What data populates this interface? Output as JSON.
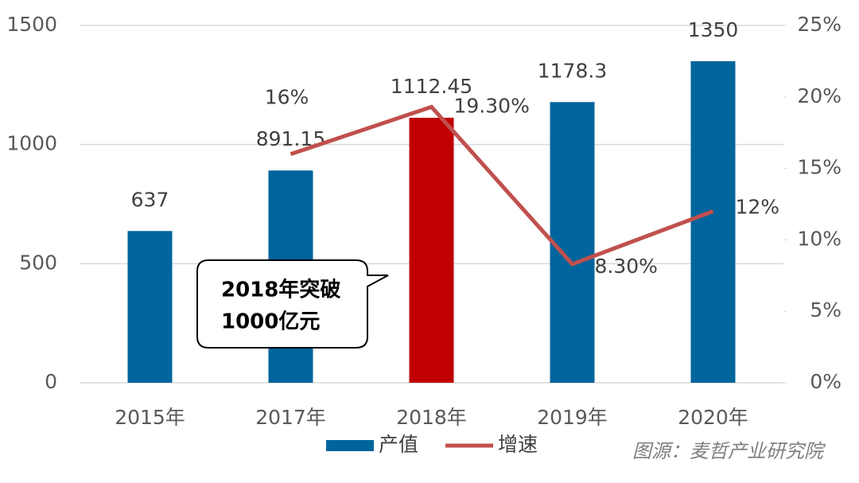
{
  "chart_data": {
    "type": "bar-line",
    "categories": [
      "2015年",
      "2017年",
      "2018年",
      "2019年",
      "2020年"
    ],
    "series": [
      {
        "name": "产值",
        "type": "bar",
        "color": "#00659c",
        "colors": [
          "#00659c",
          "#00659c",
          "#c00000",
          "#00659c",
          "#00659c"
        ],
        "values": [
          637,
          891.15,
          1112.45,
          1178.3,
          1350
        ]
      },
      {
        "name": "增速",
        "type": "line",
        "axis": "y2",
        "color": "#c0504d",
        "values": [
          null,
          16,
          19.3,
          8.3,
          12
        ],
        "value_labels": [
          null,
          "16%",
          "19.30%",
          "8.30%",
          "12%"
        ]
      }
    ],
    "ylim": [
      0,
      1500
    ],
    "yticks": [
      0,
      500,
      1000,
      1500
    ],
    "y2lim": [
      0,
      25
    ],
    "y2ticks": [
      {
        "value": 0,
        "label": "0%"
      },
      {
        "value": 5,
        "label": "5%"
      },
      {
        "value": 10,
        "label": "10%"
      },
      {
        "value": 15,
        "label": "15%"
      },
      {
        "value": 20,
        "label": "20%"
      },
      {
        "value": 25,
        "label": "25%"
      }
    ],
    "grid": true,
    "annotation": [
      "2018年突破",
      "1000亿元"
    ],
    "source": "图源：麦哲产业研究院"
  }
}
